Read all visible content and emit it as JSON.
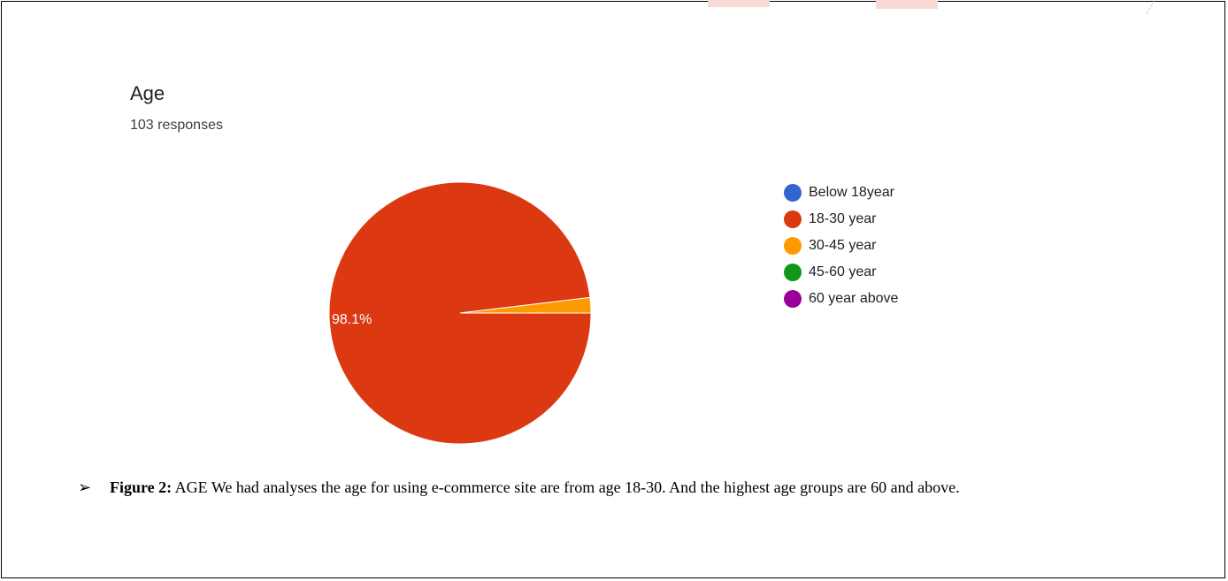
{
  "chart_data": {
    "type": "pie",
    "title": "Age",
    "subtitle": "103 responses",
    "slices": [
      {
        "label": "Below 18year",
        "value": 0,
        "color": "#3366cc"
      },
      {
        "label": "18-30 year",
        "value": 98.1,
        "color": "#dc3912"
      },
      {
        "label": "30-45 year",
        "value": 1.9,
        "color": "#ff9900"
      },
      {
        "label": "45-60 year",
        "value": 0,
        "color": "#109618"
      },
      {
        "label": "60 year above",
        "value": 0,
        "color": "#990099"
      }
    ],
    "data_labels": [
      "98.1%"
    ],
    "legend_position": "right"
  },
  "caption": {
    "bullet_icon": "arrow-bullet-icon",
    "figure_label": "Figure 2:",
    "text": " AGE We had analyses the age for using e-commerce site are from age 18-30. And the highest age groups are 60 and above."
  }
}
